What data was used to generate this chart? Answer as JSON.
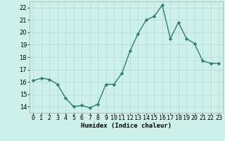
{
  "x": [
    0,
    1,
    2,
    3,
    4,
    5,
    6,
    7,
    8,
    9,
    10,
    11,
    12,
    13,
    14,
    15,
    16,
    17,
    18,
    19,
    20,
    21,
    22,
    23
  ],
  "y": [
    16.1,
    16.3,
    16.2,
    15.8,
    14.7,
    14.0,
    14.1,
    13.9,
    14.2,
    15.8,
    15.8,
    16.7,
    18.5,
    19.9,
    21.0,
    21.3,
    22.2,
    19.5,
    20.8,
    19.5,
    19.1,
    17.7,
    17.5,
    17.5
  ],
  "line_color": "#2e7d6e",
  "marker": "D",
  "markersize": 2.2,
  "linewidth": 1.0,
  "bg_color": "#cef0ea",
  "grid_color": "#b8ddd8",
  "xlabel": "Humidex (Indice chaleur)",
  "ylim": [
    13.5,
    22.5
  ],
  "yticks": [
    14,
    15,
    16,
    17,
    18,
    19,
    20,
    21,
    22
  ],
  "xtick_labels": [
    "0",
    "1",
    "2",
    "3",
    "4",
    "5",
    "6",
    "7",
    "8",
    "9",
    "10",
    "11",
    "12",
    "13",
    "14",
    "15",
    "16",
    "17",
    "18",
    "19",
    "20",
    "21",
    "22",
    "23"
  ],
  "xlabel_fontsize": 6.5,
  "tick_fontsize": 6.0
}
